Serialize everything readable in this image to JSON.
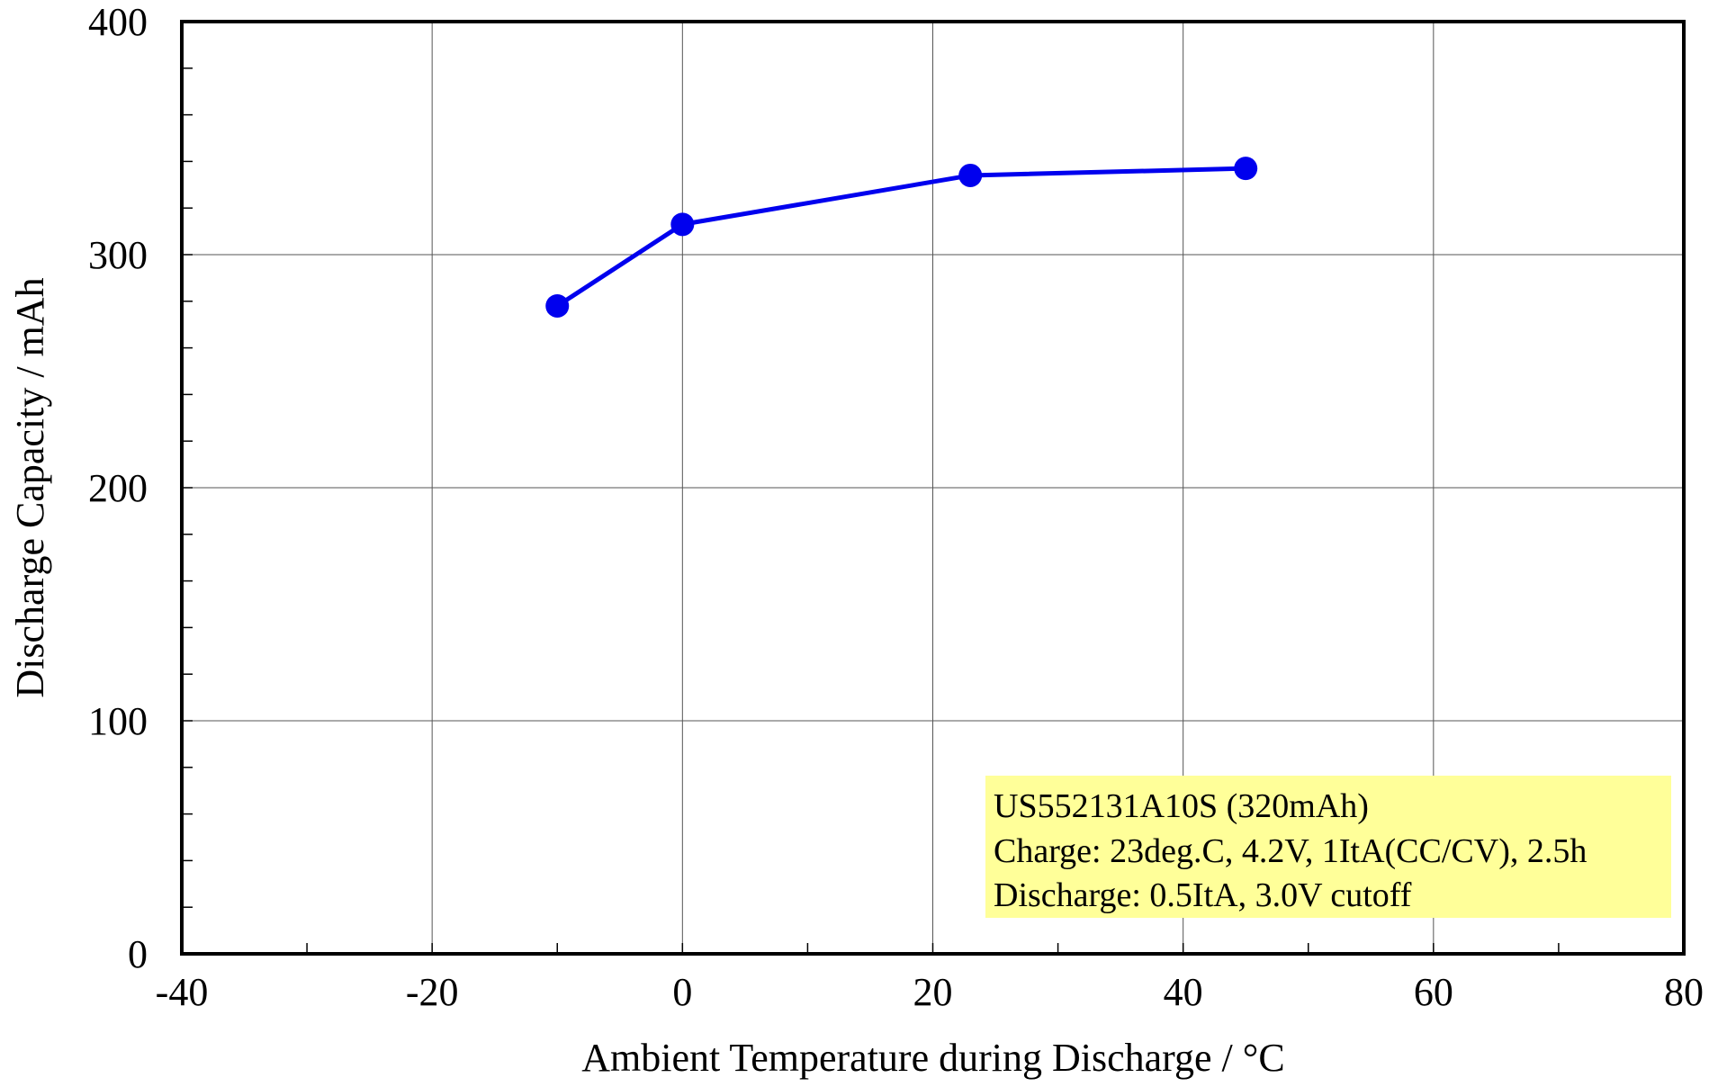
{
  "chart_data": {
    "type": "line",
    "title": "",
    "xlabel": "Ambient Temperature during Discharge / °C",
    "ylabel": "Discharge Capacity / mAh",
    "xlim": [
      -40,
      80
    ],
    "ylim": [
      0,
      400
    ],
    "x_ticks": [
      -40,
      -20,
      0,
      20,
      40,
      60,
      80
    ],
    "y_ticks": [
      0,
      100,
      200,
      300,
      400
    ],
    "x_minor_step": 10,
    "y_minor_step": 20,
    "grid": true,
    "series": [
      {
        "x": [
          -10,
          0,
          23,
          45
        ],
        "y": [
          278,
          313,
          334,
          337
        ],
        "color": "#0000ee"
      }
    ],
    "annotation": {
      "lines": [
        "US552131A10S (320mAh)",
        "Charge: 23deg.C, 4.2V, 1ItA(CC/CV), 2.5h",
        "Discharge: 0.5ItA, 3.0V cutoff"
      ],
      "background": "#ffff99",
      "placement": "bottom-right"
    }
  }
}
